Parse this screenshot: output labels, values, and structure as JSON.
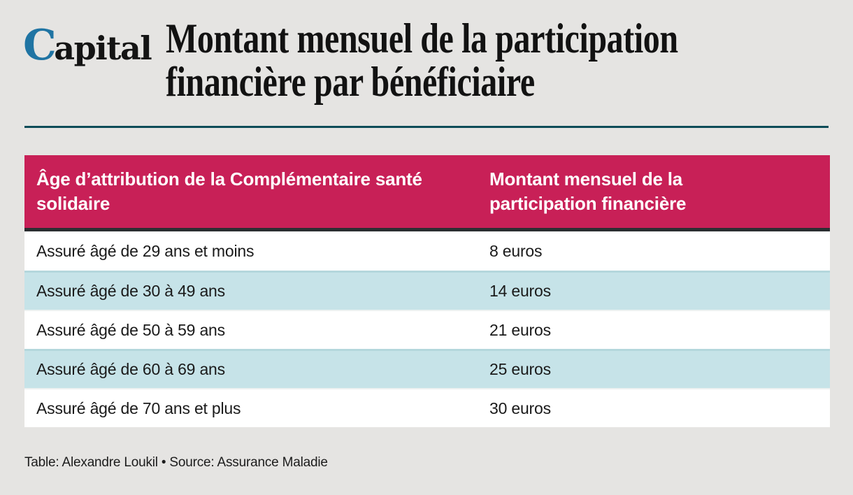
{
  "brand": {
    "logo_initial": "C",
    "logo_rest": "apital"
  },
  "header": {
    "title": "Montant mensuel de la participation financière par bénéficiaire"
  },
  "theme": {
    "page_bg": "#e5e4e2",
    "accent_crimson": "#c82057",
    "divider_teal": "#0d4c58",
    "header_border_dark": "#2b2e31",
    "row_alt_blue": "#c6e3e8",
    "row_separator": "#b4d7dc",
    "logo_blue": "#1f74a3"
  },
  "table": {
    "columns": [
      "Âge d’attribution de la Complémentaire santé solidaire",
      "Montant mensuel de la participation financière"
    ],
    "rows": [
      [
        "Assuré âgé de 29 ans et moins",
        "8 euros"
      ],
      [
        "Assuré âgé de 30 à 49 ans",
        "14 euros"
      ],
      [
        "Assuré âgé de 50 à 59 ans",
        "21 euros"
      ],
      [
        "Assuré âgé de 60 à 69 ans",
        "25 euros"
      ],
      [
        "Assuré âgé de 70 ans et plus",
        "30 euros"
      ]
    ]
  },
  "footer": {
    "credit": "Table: Alexandre Loukil • Source: Assurance Maladie"
  },
  "chart_data": {
    "type": "table",
    "title": "Montant mensuel de la participation financière par bénéficiaire",
    "columns": [
      "Âge d’attribution de la Complémentaire santé solidaire",
      "Montant mensuel de la participation financière"
    ],
    "categories": [
      "Assuré âgé de 29 ans et moins",
      "Assuré âgé de 30 à 49 ans",
      "Assuré âgé de 50 à 59 ans",
      "Assuré âgé de 60 à 69 ans",
      "Assuré âgé de 70 ans et plus"
    ],
    "values": [
      8,
      14,
      21,
      25,
      30
    ],
    "unit": "euros",
    "credit": "Table: Alexandre Loukil • Source: Assurance Maladie"
  }
}
